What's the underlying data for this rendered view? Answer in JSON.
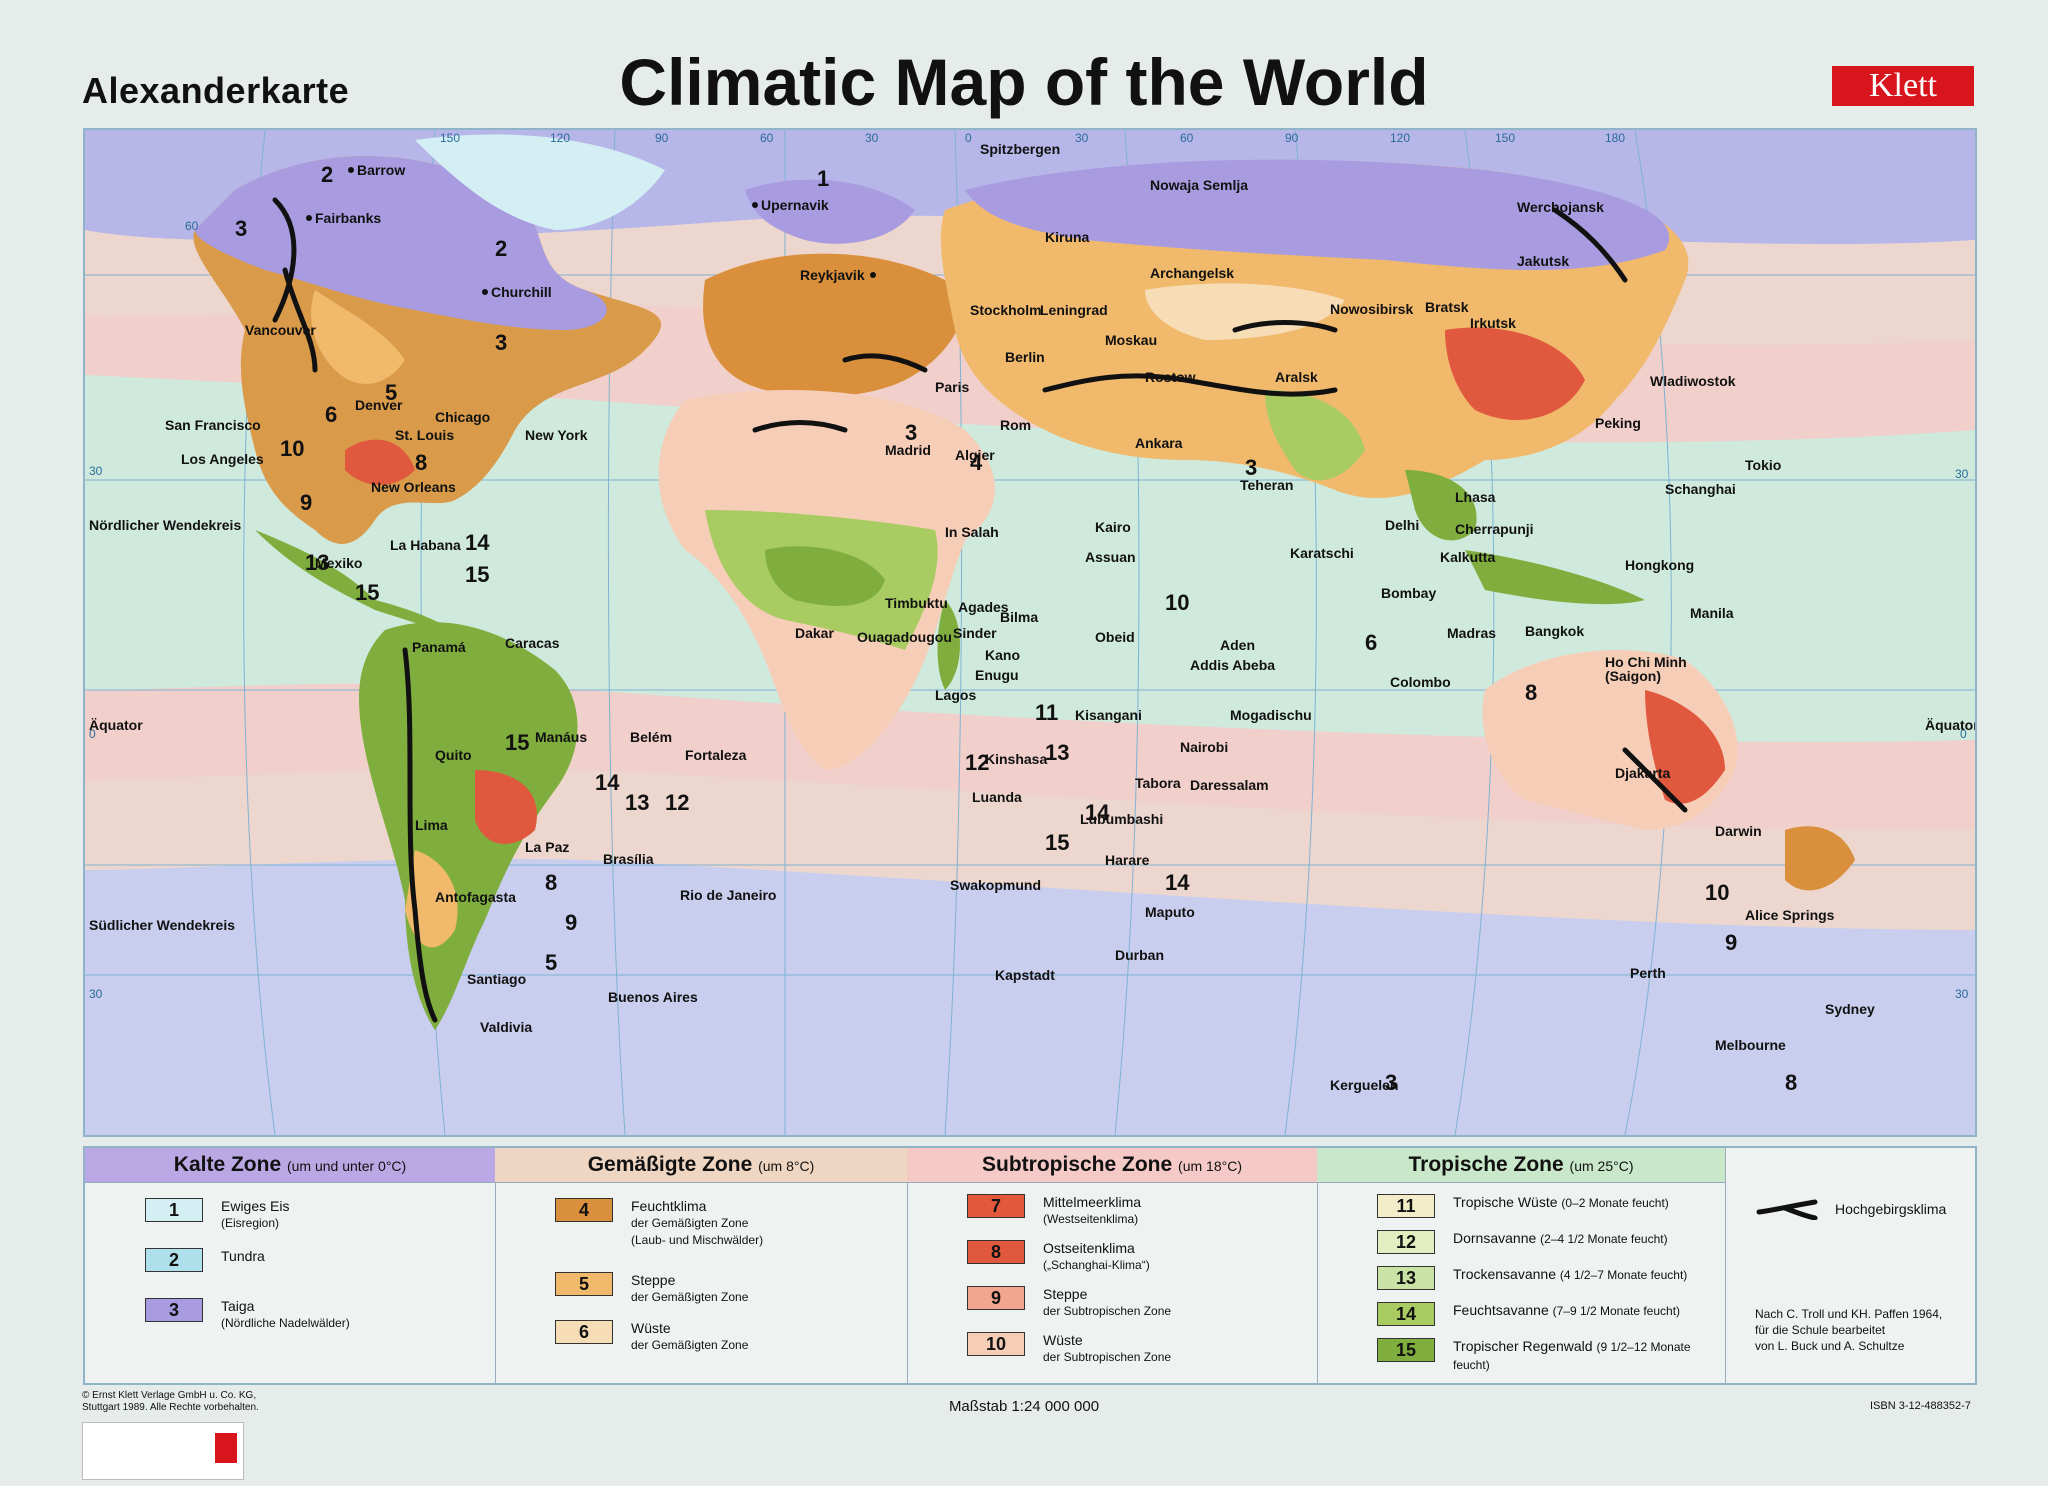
{
  "header": {
    "brand": "Alexanderkarte",
    "title": "Climatic Map of the World",
    "publisher": "Klett"
  },
  "map": {
    "lat_labels": {
      "tropic_north": "Nördlicher Wendekreis",
      "equator": "Äquator",
      "equator_right": "Äquator",
      "tropic_south": "Südlicher Wendekreis"
    },
    "long_labels": [
      "150",
      "120",
      "90",
      "60",
      "30",
      "0",
      "30",
      "60",
      "90",
      "120",
      "150",
      "180"
    ],
    "lat_numbers": [
      "60",
      "30",
      "0",
      "30",
      "30",
      "0",
      "30"
    ],
    "places": {
      "barrow": "Barrow",
      "fairbanks": "Fairbanks",
      "churchill": "Churchill",
      "upernavik": "Upernavik",
      "reykjavik": "Reykjavik",
      "vancouver": "Vancouver",
      "denver": "Denver",
      "chicago": "Chicago",
      "new_york": "New York",
      "st_louis": "St. Louis",
      "san_francisco": "San Francisco",
      "los_angeles": "Los Angeles",
      "new_orleans": "New Orleans",
      "la_habana": "La Habana",
      "mexiko": "Mexiko",
      "panama": "Panamá",
      "caracas": "Caracas",
      "quito": "Quito",
      "manaus": "Manáus",
      "belem": "Belém",
      "fortaleza": "Fortaleza",
      "lima": "Lima",
      "la_paz": "La Paz",
      "brasilia": "Brasília",
      "rio": "Rio de Janeiro",
      "antofagasta": "Antofagasta",
      "santiago": "Santiago",
      "buenos_aires": "Buenos Aires",
      "valdivia": "Valdivia",
      "spitzbergen": "Spitzbergen",
      "nowaja_semlja": "Nowaja Semlja",
      "kiruna": "Kiruna",
      "archangelsk": "Archangelsk",
      "stockholm": "Stockholm",
      "leningrad": "Leningrad",
      "moskau": "Moskau",
      "berlin": "Berlin",
      "paris": "Paris",
      "rostow": "Rostow",
      "rom": "Rom",
      "madrid": "Madrid",
      "algier": "Algier",
      "ankara": "Ankara",
      "in_salah": "In Salah",
      "kairo": "Kairo",
      "assuan": "Assuan",
      "timbuktu": "Timbuktu",
      "agades": "Agades",
      "bilma": "Bilma",
      "dakar": "Dakar",
      "ouagadougou": "Ouagadougou",
      "sinder": "Sinder",
      "kano": "Kano",
      "obeid": "Obeid",
      "aden": "Aden",
      "enugu": "Enugu",
      "lagos": "Lagos",
      "addis_abeba": "Addis Abeba",
      "mogadischu": "Mogadischu",
      "kisangani": "Kisangani",
      "nairobi": "Nairobi",
      "kinshasa": "Kinshasa",
      "tabora": "Tabora",
      "daressalam": "Daressalam",
      "luanda": "Luanda",
      "lubumbashi": "Lubumbashi",
      "harare": "Harare",
      "swakopmund": "Swakopmund",
      "maputo": "Maputo",
      "durban": "Durban",
      "kapstadt": "Kapstadt",
      "nowosibirsk": "Nowosibirsk",
      "bratsk": "Bratsk",
      "irkutsk": "Irkutsk",
      "werchojansk": "Werchojansk",
      "jakutsk": "Jakutsk",
      "aralsk": "Aralsk",
      "teheran": "Teheran",
      "karatschi": "Karatschi",
      "delhi": "Delhi",
      "lhasa": "Lhasa",
      "cherrapunji": "Cherrapunji",
      "kalkutta": "Kalkutta",
      "bombay": "Bombay",
      "madras": "Madras",
      "colombo": "Colombo",
      "peking": "Peking",
      "wladiwostok": "Wladiwostok",
      "tokio": "Tokio",
      "schanghai": "Schanghai",
      "hongkong": "Hongkong",
      "manila": "Manila",
      "bangkok": "Bangkok",
      "ho_chi_minh": "Ho Chi Minh",
      "saigon": "(Saigon)",
      "djakarta": "Djakarta",
      "darwin": "Darwin",
      "alice_springs": "Alice Springs",
      "perth": "Perth",
      "sydney": "Sydney",
      "melbourne": "Melbourne",
      "kerguelen": "Kerguelen"
    }
  },
  "legend": {
    "cold": {
      "head": "Kalte Zone",
      "temp": "(um und unter 0°C)",
      "color": "#b9a8e4",
      "items": [
        {
          "num": "1",
          "main": "Ewiges Eis",
          "desc": "(Eisregion)",
          "color": "#d4eff4"
        },
        {
          "num": "2",
          "main": "Tundra",
          "desc": "",
          "color": "#aee0ec"
        },
        {
          "num": "3",
          "main": "Taiga",
          "desc": "(Nördliche Nadelwälder)",
          "color": "#a99be0"
        }
      ]
    },
    "temperate": {
      "head": "Gemäßigte Zone",
      "temp": "(um 8°C)",
      "color": "#efd6c3",
      "items": [
        {
          "num": "4",
          "main": "Feuchtklima",
          "desc1": "der Gemäßigten Zone",
          "desc2": "(Laub- und Mischwälder)",
          "color": "#d98f3b"
        },
        {
          "num": "5",
          "main": "Steppe",
          "desc1": "der Gemäßigten Zone",
          "desc2": "",
          "color": "#f1b96c"
        },
        {
          "num": "6",
          "main": "Wüste",
          "desc1": "der Gemäßigten Zone",
          "desc2": "",
          "color": "#f6ddb6"
        }
      ]
    },
    "subtropical": {
      "head": "Subtropische Zone",
      "temp": "(um 18°C)",
      "color": "#f4c9c6",
      "items": [
        {
          "num": "7",
          "main": "Mittelmeerklima",
          "desc1": "(Westseitenklima)",
          "color": "#e3573b"
        },
        {
          "num": "8",
          "main": "Ostseitenklima",
          "desc1": "(„Schanghai-Klima“)",
          "color": "#e0583e"
        },
        {
          "num": "9",
          "main": "Steppe",
          "desc1": "der Subtropischen Zone",
          "color": "#f2a68f"
        },
        {
          "num": "10",
          "main": "Wüste",
          "desc1": "der Subtropischen Zone",
          "color": "#f6cdb7"
        }
      ]
    },
    "tropical": {
      "head": "Tropische Zone",
      "temp": "(um 25°C)",
      "color": "#c8e8c9",
      "items": [
        {
          "num": "11",
          "main": "Tropische Wüste",
          "desc": "(0–2 Monate feucht)",
          "color": "#f3ecc8"
        },
        {
          "num": "12",
          "main": "Dornsavanne",
          "desc": "(2–4 1/2 Monate feucht)",
          "color": "#e3eec0"
        },
        {
          "num": "13",
          "main": "Trockensavanne",
          "desc": "(4 1/2–7 Monate feucht)",
          "color": "#c9e3a6"
        },
        {
          "num": "14",
          "main": "Feuchtsavanne",
          "desc": "(7–9 1/2 Monate feucht)",
          "color": "#a9cc62"
        },
        {
          "num": "15",
          "main": "Tropischer Regenwald",
          "desc": "(9 1/2–12 Monate feucht)",
          "color": "#7fae3e"
        }
      ]
    },
    "mountain": {
      "label": "Hochgebirgsklima"
    },
    "credit": {
      "l1": "Nach C. Troll und KH. Paffen 1964,",
      "l2": "für die Schule bearbeitet",
      "l3": "von L. Buck und A. Schultze"
    }
  },
  "footer": {
    "copyright1": "© Ernst Klett Verlage GmbH u. Co. KG,",
    "copyright2": "Stuttgart 1989. Alle Rechte vorbehalten.",
    "scale": "Maßstab 1:24 000 000",
    "isbn": "ISBN 3-12-488352-7"
  }
}
